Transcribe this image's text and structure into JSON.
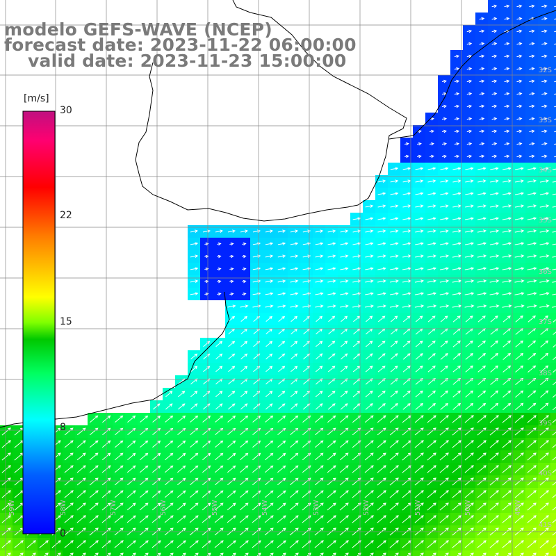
{
  "title": {
    "line1": "modelo GEFS-WAVE (NCEP)",
    "line2": "forecast date: 2023-11-22 06:00:00",
    "line3": "valid date: 2023-11-23 15:00:00"
  },
  "colorbar": {
    "unit": "[m/s]",
    "ticks": [
      "30",
      "22",
      "15",
      "8",
      "0"
    ],
    "min": 0,
    "max": 30,
    "colors": [
      "#0000ff",
      "#0080ff",
      "#00ffff",
      "#00ff40",
      "#00c000",
      "#80ff00",
      "#ffff00",
      "#ff8000",
      "#ff0000",
      "#ff0060",
      "#c01080"
    ]
  },
  "grid": {
    "lat_labels": [
      "32S",
      "33S",
      "34S",
      "35S",
      "36S",
      "37S",
      "38S",
      "39S",
      "40S",
      "41S"
    ],
    "lon_labels": [
      "59W",
      "58W",
      "57W",
      "56W",
      "55W",
      "54W",
      "53W",
      "52W",
      "51W",
      "50W",
      "49W"
    ]
  },
  "field": {
    "variable": "wind speed",
    "arrow_color": "#ffffff",
    "land_color": "#ffffff",
    "coast_color": "#000000"
  }
}
